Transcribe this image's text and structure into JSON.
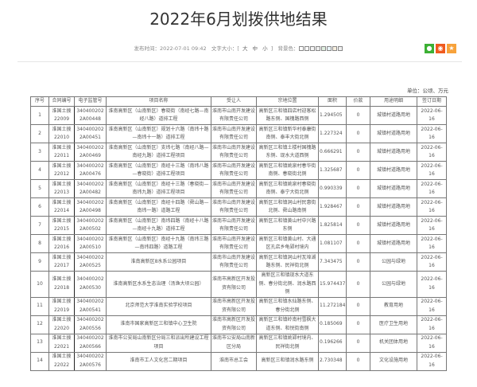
{
  "title": "2022年6月划拨供地结果",
  "meta": {
    "publish_label": "发布时间：",
    "publish_time": "2022-07-01 09:42",
    "font_label": "文字大小：[",
    "font_large": "大",
    "font_medium": "中",
    "font_small": "小",
    "font_close": "]",
    "bg_label": "背景色："
  },
  "bg_colors": [
    "#ffffff",
    "#fafafa",
    "#f5f5f5",
    "#eeeeee",
    "#e0f0e0",
    "#e8f4f8",
    "#f8f0e0",
    "#f0f0f0"
  ],
  "share": {
    "wechat_color": "#3cb034",
    "weibo_color": "#f05a1e",
    "fav_color": "#f7a23b"
  },
  "unit": "单位：公顷、万元",
  "table": {
    "headers": [
      "序号",
      "合同编号",
      "电子监管号",
      "项目名称",
      "受让人",
      "宗地位置",
      "面积",
      "价款",
      "用途明细",
      "签订日期"
    ],
    "rows": [
      [
        "1",
        "淮国土拨22009",
        "340400202 2A00448",
        "淮南高新区（山南新区）春晓街（南经七路—南经八路）道排工程",
        "淮南市山南开发建设有限责任公司",
        "高新区三和镇四店村迎客松路东侧、国槐路西侧",
        "1.294505",
        "0",
        "城镇村道路用地",
        "2022-06-16"
      ],
      [
        "2",
        "淮国土拨22010",
        "340400202 2A00451",
        "淮南高新区（山南新区）规划十六路（南纬十路—南纬十一路）道排工程",
        "淮南市山南开发建设有限责任公司",
        "高新区三和镇新华村泰康街南侧、泰丰大街北侧",
        "1.227324",
        "0",
        "城镇村道路用地",
        "2022-06-16"
      ],
      [
        "3",
        "淮国土拨22011",
        "340400202 2A00469",
        "淮南高新区（山南新区）支纬七路（南经八路—南经九路）道排工程项目",
        "淮南市山南开发建设有限责任公司",
        "高新区三和镇土楼村国槐路东侧、现水大道西侧",
        "0.666291",
        "0",
        "城镇村道路用地",
        "2022-06-16"
      ],
      [
        "4",
        "淮国土拨22012",
        "340400202 2A00476",
        "淮南高新区（山南新区）南经十三路（南纬八路—春晓街）道排工程项目",
        "淮南市山南开发建设有限责任公司",
        "高新区三和镇姚泉村春华街南侧、春晓街北侧",
        "1.325687",
        "0",
        "城镇村道路用地",
        "2022-06-16"
      ],
      [
        "5",
        "淮国土拨22013",
        "340400202 2A00482",
        "淮南高新区（山南新区）南经十三路（春晓街—南纬九路）道排工程项目",
        "淮南市山南开发建设有限责任公司",
        "高新区三和镇姚泉村春晓街南侧、泰宁大街北侧",
        "0.990339",
        "0",
        "城镇村道路用地",
        "2022-06-16"
      ],
      [
        "6",
        "淮国土拨22014",
        "340400202 2A00498",
        "淮南高新区（山南新区）南经十四路（舜山路—南纬一路）道路工程",
        "淮南市山南开发建设有限责任公司",
        "高新区三和镇洞山村民惠街北侧、舜山路南侧",
        "1.928467",
        "0",
        "城镇村道路用地",
        "2022-06-16"
      ],
      [
        "7",
        "淮国土拨22015",
        "340400202 2A00502",
        "淮南高新区（山南新区）南纬四路（南经十八路—南经十九路）道排工程",
        "淮南市山南开发建设有限责任公司",
        "高新区三和镇黄山村中兴路东侧",
        "1.825814",
        "0",
        "城镇村道路用地",
        "2022-06-16"
      ],
      [
        "8",
        "淮国土拨22016",
        "340400202 2A00510",
        "淮南高新区（山南新区）南经十九路（南纬三路—南纬四路）道路工程",
        "淮南市山南开发建设有限责任公司",
        "高新区三和镇黄山村、大通区孔店乡龟郢村境内",
        "1.081107",
        "0",
        "城镇村道路用地",
        "2022-06-16"
      ],
      [
        "9",
        "淮国土拨22017",
        "340400202 2A00525",
        "淮南高新区8水系公园项目",
        "淮南市山南开发建设有限责任公司",
        "高新区三和镇洞山村瓦埠湖路东侧、民祥街北侧",
        "7.343475",
        "0",
        "公园与绿地",
        "2022-06-16"
      ],
      [
        "10",
        "淮国土拨22018",
        "340400202 2A00530",
        "淮南高新区水系生态治理（汤渔大坝公园）",
        "淮南市高新区开发投资有限公司",
        "高新区三和镇现水大道东侧、春分街北侧、润水路西侧",
        "15.974437",
        "0",
        "公园与绿地",
        "2022-06-16"
      ],
      [
        "11",
        "淮国土拨22019",
        "340400202 2A00541",
        "北京师范大学淮南实验学校项目",
        "淮南市高新区开发投资有限公司",
        "高新区三和镇水仙路东侧、春分街北侧",
        "11.272184",
        "0",
        "教育用地",
        "2022-06-16"
      ],
      [
        "12",
        "淮国土拨22020",
        "340400202 2A00556",
        "淮南市国家高新区三和镇中心卫生院",
        "淮南市高新区开发投资有限公司",
        "高新区三和镇岭南村雪枫大道东侧、和悦街南侧",
        "0.185069",
        "0",
        "医疗卫生用地",
        "2022-06-16"
      ],
      [
        "13",
        "淮国土拨22021",
        "340400202 2A00566",
        "淮南市公安局山南新区分局三和派出所建设工程项目",
        "淮南市公安局山南新区分局",
        "高新区三和镇姚郢村境内、民祥街北侧",
        "0.196266",
        "0",
        "机关团体用地",
        "2022-06-16"
      ],
      [
        "14",
        "淮国土拨22022",
        "340400202 2A00576",
        "淮南市工人文化宫二期项目",
        "淮南市总工会",
        "高新区三和镇润水路东侧",
        "2.730348",
        "0",
        "文化设施用地",
        "2022-06-16"
      ]
    ]
  }
}
